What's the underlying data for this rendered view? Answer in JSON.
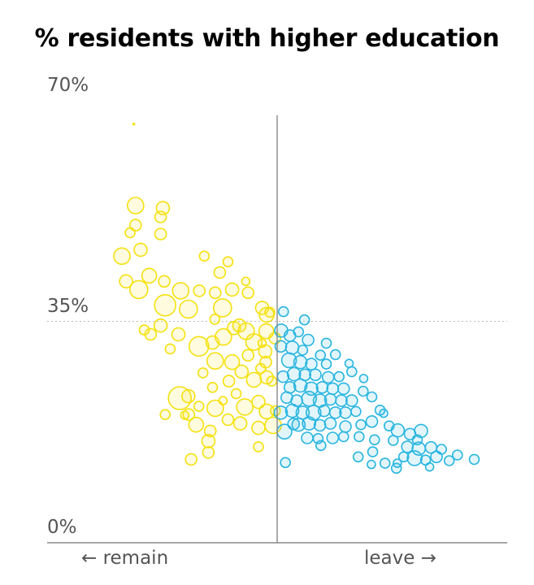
{
  "chart_data": {
    "type": "scatter",
    "title": "% residents with higher education",
    "x_axis_left_label": "← remain",
    "x_axis_right_label": "leave →",
    "ylim": [
      0,
      70
    ],
    "xlim": [
      -50,
      50
    ],
    "y_ticks": [
      {
        "value": 70,
        "label": "70%"
      },
      {
        "value": 35,
        "label": "35%"
      },
      {
        "value": 0,
        "label": "0%"
      }
    ],
    "colors": {
      "remain": "#f5e10f",
      "leave": "#29b6e0",
      "axis": "#888888",
      "gridline": "#bbbbbb"
    },
    "series": [
      {
        "key": "remain",
        "points": [
          [
            -31.5,
            66.3,
            1
          ],
          [
            -31.1,
            53.4,
            10
          ],
          [
            -25.1,
            53.0,
            8
          ],
          [
            -25.6,
            51.6,
            7
          ],
          [
            -31.1,
            50.3,
            7
          ],
          [
            -25.6,
            48.9,
            7
          ],
          [
            -32.3,
            49.1,
            6
          ],
          [
            -34.1,
            45.4,
            10
          ],
          [
            -30.0,
            46.4,
            8
          ],
          [
            -16.0,
            45.4,
            6
          ],
          [
            -10.8,
            44.5,
            6
          ],
          [
            -12.6,
            42.8,
            7
          ],
          [
            -28.1,
            42.3,
            9
          ],
          [
            -33.2,
            41.4,
            8
          ],
          [
            -30.4,
            40.1,
            11
          ],
          [
            -24.8,
            41.4,
            7
          ],
          [
            -21.2,
            39.9,
            10
          ],
          [
            -17.1,
            39.9,
            7
          ],
          [
            -13.6,
            39.6,
            7
          ],
          [
            -9.9,
            40.1,
            8
          ],
          [
            -6.4,
            39.6,
            7
          ],
          [
            -6.9,
            41.4,
            5
          ],
          [
            -24.6,
            37.6,
            13
          ],
          [
            -19.5,
            37.0,
            11
          ],
          [
            -12.0,
            37.2,
            11
          ],
          [
            -3.3,
            37.2,
            8
          ],
          [
            -2.3,
            36.1,
            9
          ],
          [
            -8.3,
            34.4,
            8
          ],
          [
            -25.6,
            34.4,
            8
          ],
          [
            -29.2,
            33.7,
            6
          ],
          [
            -27.8,
            33.0,
            7
          ],
          [
            -21.7,
            33.0,
            8
          ],
          [
            -23.5,
            30.7,
            6
          ],
          [
            -17.2,
            31.1,
            12
          ],
          [
            -14.2,
            31.7,
            8
          ],
          [
            -11.8,
            32.6,
            10
          ],
          [
            -9.5,
            34.0,
            8
          ],
          [
            -6.8,
            33.5,
            10
          ],
          [
            -5.1,
            31.8,
            10
          ],
          [
            -2.4,
            33.5,
            9
          ],
          [
            -0.5,
            32.4,
            7
          ],
          [
            -2.6,
            30.3,
            8
          ],
          [
            -13.6,
            28.8,
            10
          ],
          [
            -9.9,
            28.6,
            9
          ],
          [
            -7.8,
            27.1,
            8
          ],
          [
            -2.5,
            28.6,
            7
          ],
          [
            -10.6,
            25.6,
            7
          ],
          [
            -14.2,
            24.6,
            6
          ],
          [
            -5.1,
            25.8,
            9
          ],
          [
            -2.3,
            26.2,
            8
          ],
          [
            -19.5,
            23.2,
            8
          ],
          [
            -21.4,
            22.9,
            14
          ],
          [
            -13.6,
            21.3,
            10
          ],
          [
            -7.1,
            21.5,
            10
          ],
          [
            -4.1,
            22.3,
            8
          ],
          [
            -2.3,
            20.8,
            9
          ],
          [
            -10.8,
            19.5,
            7
          ],
          [
            -19.4,
            20.3,
            7
          ],
          [
            -17.8,
            18.7,
            9
          ],
          [
            -8.1,
            18.9,
            8
          ],
          [
            -4.1,
            18.2,
            8
          ],
          [
            -0.9,
            18.6,
            10
          ],
          [
            -0.4,
            20.9,
            6
          ],
          [
            -15.1,
            16.1,
            8
          ],
          [
            -18.9,
            13.2,
            7
          ],
          [
            -15.1,
            14.3,
            7
          ],
          [
            -14.7,
            17.7,
            7
          ],
          [
            -17.2,
            21.6,
            6
          ],
          [
            -9.0,
            23.6,
            6
          ],
          [
            -11.9,
            22.5,
            5
          ],
          [
            -3.6,
            27.6,
            6
          ],
          [
            -6.4,
            29.7,
            7
          ],
          [
            -1.6,
            36.5,
            6
          ],
          [
            -3.3,
            31.6,
            5
          ],
          [
            -13.7,
            35.4,
            6
          ],
          [
            -1.2,
            25.6,
            6
          ],
          [
            -16.3,
            26.9,
            6
          ],
          [
            -20.3,
            20.2,
            5
          ],
          [
            -24.6,
            20.3,
            6
          ],
          [
            -4.1,
            15.2,
            6
          ]
        ]
      },
      {
        "key": "leave",
        "points": [
          [
            1.4,
            36.6,
            6
          ],
          [
            0.9,
            33.6,
            8
          ],
          [
            2.8,
            32.8,
            7
          ],
          [
            4.7,
            33.4,
            6
          ],
          [
            6.8,
            32.1,
            7
          ],
          [
            0.8,
            31.1,
            7
          ],
          [
            3.3,
            30.9,
            8
          ],
          [
            5.6,
            30.5,
            6
          ],
          [
            9.5,
            29.7,
            6
          ],
          [
            12.8,
            29.8,
            6
          ],
          [
            2.6,
            28.9,
            9
          ],
          [
            5.1,
            28.6,
            8
          ],
          [
            7.5,
            28.3,
            7
          ],
          [
            10.8,
            28.3,
            6
          ],
          [
            1.3,
            26.3,
            7
          ],
          [
            3.7,
            26.7,
            8
          ],
          [
            6.1,
            26.6,
            7
          ],
          [
            8.4,
            26.6,
            7
          ],
          [
            11.2,
            26.2,
            7
          ],
          [
            13.6,
            26.3,
            6
          ],
          [
            16.4,
            27.1,
            6
          ],
          [
            2.8,
            24.6,
            7
          ],
          [
            5.1,
            24.9,
            8
          ],
          [
            7.5,
            24.4,
            8
          ],
          [
            9.9,
            24.6,
            7
          ],
          [
            12.2,
            24.4,
            7
          ],
          [
            14.6,
            24.4,
            7
          ],
          [
            18.9,
            24.0,
            6
          ],
          [
            4.3,
            22.5,
            7
          ],
          [
            7.0,
            22.8,
            9
          ],
          [
            9.4,
            22.5,
            8
          ],
          [
            11.7,
            22.7,
            7
          ],
          [
            14.1,
            22.5,
            7
          ],
          [
            16.4,
            22.5,
            7
          ],
          [
            20.8,
            23.1,
            6
          ],
          [
            0.8,
            20.6,
            8
          ],
          [
            3.3,
            20.9,
            8
          ],
          [
            5.6,
            20.6,
            8
          ],
          [
            8.0,
            20.6,
            9
          ],
          [
            10.3,
            20.9,
            7
          ],
          [
            12.8,
            20.6,
            7
          ],
          [
            15.0,
            20.6,
            7
          ],
          [
            17.3,
            20.8,
            6
          ],
          [
            22.6,
            21.0,
            6
          ],
          [
            4.7,
            18.7,
            8
          ],
          [
            7.0,
            18.9,
            8
          ],
          [
            9.4,
            18.6,
            7
          ],
          [
            11.7,
            18.9,
            7
          ],
          [
            15.0,
            18.4,
            7
          ],
          [
            18.4,
            18.7,
            6
          ],
          [
            20.8,
            19.2,
            7
          ],
          [
            24.6,
            18.5,
            6
          ],
          [
            26.5,
            17.8,
            8
          ],
          [
            29.2,
            17.2,
            7
          ],
          [
            31.6,
            17.7,
            8
          ],
          [
            6.6,
            16.6,
            7
          ],
          [
            9.0,
            16.5,
            6
          ],
          [
            12.2,
            16.6,
            7
          ],
          [
            14.6,
            16.8,
            6
          ],
          [
            18.0,
            16.8,
            6
          ],
          [
            21.4,
            16.3,
            6
          ],
          [
            25.5,
            16.2,
            6
          ],
          [
            28.6,
            15.2,
            7
          ],
          [
            31.1,
            14.9,
            8
          ],
          [
            33.8,
            15.1,
            7
          ],
          [
            36.1,
            14.8,
            6
          ],
          [
            27.8,
            13.6,
            6
          ],
          [
            30.2,
            13.4,
            9
          ],
          [
            32.6,
            13.1,
            6
          ],
          [
            35.0,
            13.6,
            7
          ],
          [
            37.8,
            13.0,
            6
          ],
          [
            9.6,
            15.4,
            6
          ],
          [
            17.8,
            13.6,
            6
          ],
          [
            21.0,
            14.4,
            6
          ],
          [
            39.6,
            13.9,
            6
          ],
          [
            43.3,
            13.2,
            6
          ],
          [
            1.6,
            17.6,
            9
          ],
          [
            3.6,
            18.8,
            7
          ],
          [
            2.1,
            23.0,
            7
          ],
          [
            1.8,
            12.7,
            6
          ],
          [
            26.4,
            12.6,
            5
          ],
          [
            23.7,
            12.6,
            6
          ],
          [
            26.2,
            11.8,
            6
          ],
          [
            20.7,
            12.4,
            5
          ],
          [
            33.5,
            12.0,
            5
          ],
          [
            30.8,
            16.3,
            6
          ],
          [
            6.0,
            35.3,
            6
          ],
          [
            10.8,
            31.6,
            6
          ],
          [
            15.8,
            28.4,
            5
          ],
          [
            19.0,
            26.0,
            5
          ],
          [
            23.4,
            20.5,
            5
          ]
        ]
      }
    ]
  }
}
